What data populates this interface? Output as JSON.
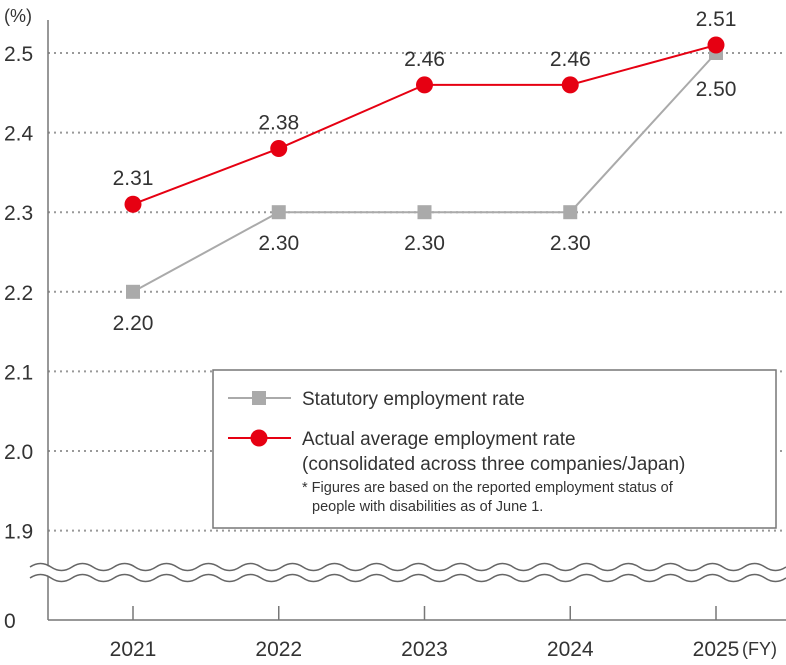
{
  "chart_data": {
    "type": "line",
    "ylabel": "(%)",
    "xlabel": "(FY)",
    "categories": [
      "2021",
      "2022",
      "2023",
      "2024",
      "2025"
    ],
    "yticks": [
      "2.5",
      "2.4",
      "2.3",
      "2.2",
      "2.1",
      "2.0",
      "1.9",
      "0"
    ],
    "ylim": [
      1.9,
      2.5
    ],
    "axis_break": true,
    "grid": "horizontal dotted",
    "legend_placement": "bottom-right",
    "series": [
      {
        "name": "Statutory employment rate",
        "color": "#aaaaaa",
        "marker": "square",
        "values": [
          2.2,
          2.3,
          2.3,
          2.3,
          2.5
        ],
        "labels": [
          "2.20",
          "2.30",
          "2.30",
          "2.30",
          "2.50"
        ]
      },
      {
        "name": "Actual average employment rate",
        "name_line2": "(consolidated across three companies/Japan)",
        "color": "#e60012",
        "marker": "circle",
        "values": [
          2.31,
          2.38,
          2.46,
          2.46,
          2.51
        ],
        "labels": [
          "2.31",
          "2.38",
          "2.46",
          "2.46",
          "2.51"
        ]
      }
    ],
    "note_line1": "* Figures are based on the reported employment status of",
    "note_line2": "people with disabilities as of June 1."
  }
}
